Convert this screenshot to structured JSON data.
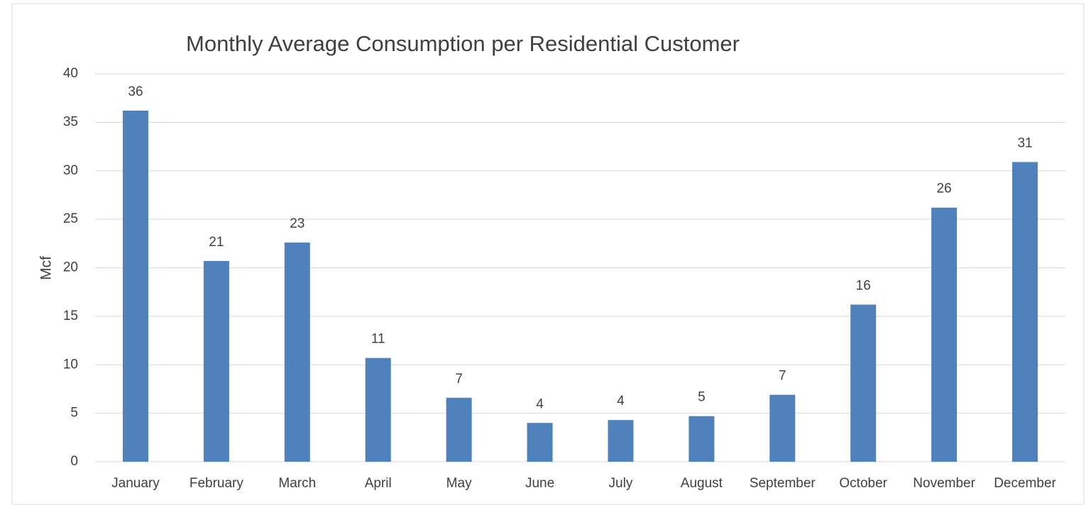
{
  "chart_data": {
    "type": "bar",
    "title": "Monthly Average Consumption per Residential Customer",
    "y_label": "Mcf",
    "categories": [
      "January",
      "February",
      "March",
      "April",
      "May",
      "June",
      "July",
      "August",
      "September",
      "October",
      "November",
      "December"
    ],
    "values": [
      36.2,
      20.7,
      22.6,
      10.7,
      6.6,
      4.0,
      4.3,
      4.7,
      6.9,
      16.2,
      26.2,
      30.9
    ],
    "value_labels": [
      "36",
      "21",
      "23",
      "11",
      "7",
      "4",
      "4",
      "5",
      "7",
      "16",
      "26",
      "31"
    ],
    "color": "#4f81bd",
    "ylim": [
      0,
      40
    ],
    "yticks": [
      0,
      5,
      10,
      15,
      20,
      25,
      30,
      35,
      40
    ],
    "grid": true
  }
}
